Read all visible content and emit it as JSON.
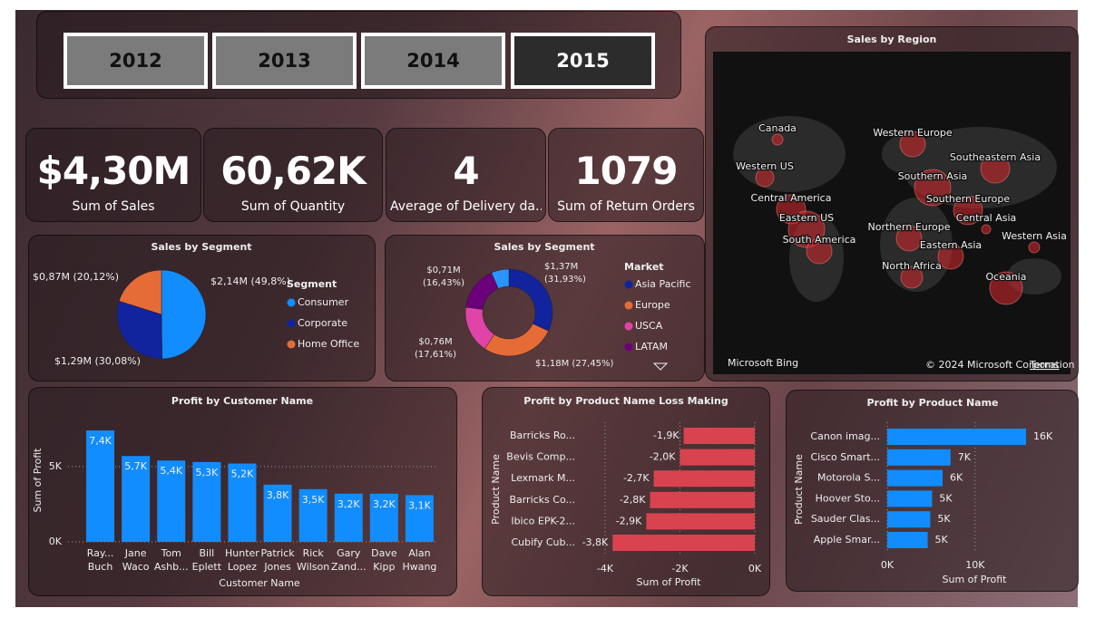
{
  "slicer": {
    "years": [
      "2012",
      "2013",
      "2014",
      "2015"
    ]
  },
  "cards": [
    {
      "value": "$4,30M",
      "label": "Sum of Sales"
    },
    {
      "value": "60,62K",
      "label": "Sum of Quantity"
    },
    {
      "value": "4",
      "label": "Average of Delivery da…"
    },
    {
      "value": "1079",
      "label": "Sum of Return Orders"
    }
  ],
  "map": {
    "title": "Sales by Region",
    "regions": [
      "Canada",
      "Western US",
      "Central America",
      "Eastern US",
      "South America",
      "Western Europe",
      "Southern Asia",
      "Southeastern Asia",
      "Southern Europe",
      "Northern Europe",
      "Central Asia",
      "Eastern Asia",
      "Western Asia",
      "North Africa",
      "Oceania"
    ],
    "provider": "Microsoft Bing",
    "attribution": "© 2024 Microsoft Corporation",
    "terms": "Terms"
  },
  "chart_data": [
    {
      "type": "pie",
      "title": "Sales by Segment",
      "legend_title": "Segment",
      "categories": [
        "Consumer",
        "Corporate",
        "Home Office"
      ],
      "values": [
        49.8,
        30.08,
        20.12
      ],
      "value_labels": [
        "$2,14M (49,8%)",
        "$1,29M (30,08%)",
        "$0,87M (20,12%)"
      ],
      "colors": [
        "#118dff",
        "#12239e",
        "#e66c37"
      ]
    },
    {
      "type": "donut",
      "title": "Sales by Segment",
      "legend_title": "Market",
      "categories": [
        "Asia Pacific",
        "Europe",
        "USCA",
        "LATAM",
        null
      ],
      "values": [
        31.93,
        27.45,
        17.61,
        16.43,
        6.58
      ],
      "value_labels": [
        "$1,37M (31,93%)",
        "$1,18M (27,45%)",
        "$0,76M (17,61%)",
        "$0,71M (16,43%)",
        null
      ],
      "colors": [
        "#12239e",
        "#e66c37",
        "#e044a7",
        "#6b007b",
        "#2b95ff"
      ]
    },
    {
      "type": "bar",
      "title": "Profit by Customer Name",
      "x_label": "Customer Name",
      "y_label": "Sum of Profit",
      "categories": [
        "Ray... Buch",
        "Jane Waco",
        "Tom Ashb...",
        "Bill Eplett",
        "Hunter Lopez",
        "Patrick Jones",
        "Rick Wilson",
        "Gary Zand...",
        "Dave Kipp",
        "Alan Hwang"
      ],
      "values": [
        7400,
        5700,
        5400,
        5300,
        5200,
        3800,
        3500,
        3200,
        3200,
        3100
      ],
      "value_labels": [
        "7,4K",
        "5,7K",
        "5,4K",
        "5,3K",
        "5,2K",
        "3,8K",
        "3,5K",
        "3,2K",
        "3,2K",
        "3,1K"
      ],
      "color": "#118dff",
      "ylim": [
        0,
        8000
      ],
      "yticks": [
        {
          "value": 0,
          "label": "0K"
        },
        {
          "value": 5000,
          "label": "5K"
        }
      ],
      "grid": true
    },
    {
      "type": "hbar",
      "title": "Profit by Product Name Loss Making",
      "x_label": "Sum of Profit",
      "y_label": "Product Name",
      "categories": [
        "Barricks Ro...",
        "Bevis Comp...",
        "Lexmark M...",
        "Barricks Co...",
        "Ibico EPK-2...",
        "Cubify Cub..."
      ],
      "values": [
        -1900,
        -2000,
        -2700,
        -2800,
        -2900,
        -3800
      ],
      "value_labels": [
        "-1,9K",
        "-2,0K",
        "-2,7K",
        "-2,8K",
        "-2,9K",
        "-3,8K"
      ],
      "color": "#d9434f",
      "xlim": [
        -4000,
        0
      ],
      "xticks": [
        {
          "value": -4000,
          "label": "-4K"
        },
        {
          "value": -2000,
          "label": "-2K"
        },
        {
          "value": 0,
          "label": "0K"
        }
      ],
      "grid": true
    },
    {
      "type": "hbar",
      "title": "Profit by Product Name",
      "x_label": "Sum of Profit",
      "y_label": "Product Name",
      "categories": [
        "Canon imag...",
        "Cisco Smart...",
        "Motorola S...",
        "Hoover Sto...",
        "Sauder Clas...",
        "Apple Smar..."
      ],
      "values": [
        15800,
        7200,
        6300,
        5100,
        4900,
        4600
      ],
      "value_labels": [
        "16K",
        "7K",
        "6K",
        "5K",
        "5K",
        "5K"
      ],
      "color": "#118dff",
      "xlim": [
        0,
        19000
      ],
      "xticks": [
        {
          "value": 0,
          "label": "0K"
        },
        {
          "value": 10000,
          "label": "10K"
        }
      ],
      "grid": true
    }
  ]
}
